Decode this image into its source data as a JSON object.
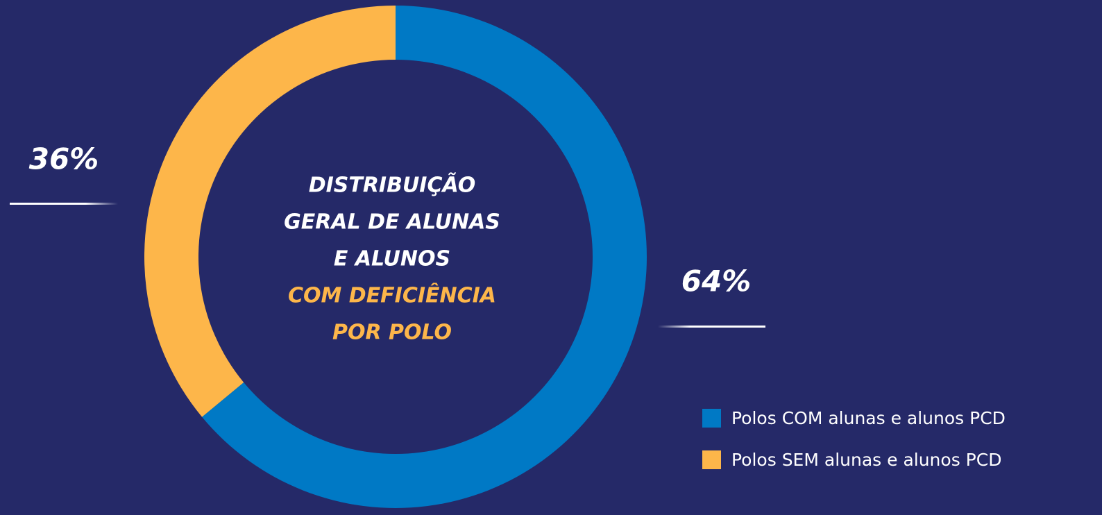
{
  "chart_data": {
    "type": "pie",
    "title": [
      "DISTRIBUIÇÃO",
      "GERAL DE  ALUNAS",
      "E ALUNOS"
    ],
    "subtitle": [
      "COM DEFICIÊNCIA",
      "POR POLO"
    ],
    "categories": [
      "Polos COM alunas e alunos PCD",
      "Polos SEM alunas e alunos PCD"
    ],
    "values": [
      64,
      36
    ],
    "value_labels": [
      "64%",
      "36%"
    ],
    "colors": [
      "#0079c5",
      "#fdb64a"
    ],
    "legend": "bottom-right"
  }
}
